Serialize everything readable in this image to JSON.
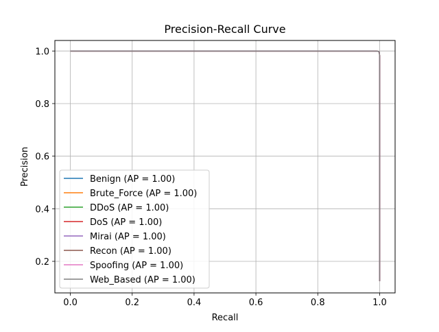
{
  "chart_data": {
    "type": "line",
    "title": "Precision-Recall Curve",
    "xlabel": "Recall",
    "ylabel": "Precision",
    "xlim": [
      -0.05,
      1.05
    ],
    "ylim": [
      0.08,
      1.04
    ],
    "xticks": [
      0.0,
      0.2,
      0.4,
      0.6,
      0.8,
      1.0
    ],
    "xtick_labels": [
      "0.0",
      "0.2",
      "0.4",
      "0.6",
      "0.8",
      "1.0"
    ],
    "yticks": [
      0.2,
      0.4,
      0.6,
      0.8,
      1.0
    ],
    "ytick_labels": [
      "0.2",
      "0.4",
      "0.6",
      "0.8",
      "1.0"
    ],
    "grid": true,
    "legend_position": "lower-left",
    "series": [
      {
        "name": "Benign (AP = 1.00)",
        "color": "#1f77b4",
        "x": [
          0.0,
          0.9,
          0.98,
          0.995,
          0.999,
          1.0,
          1.0
        ],
        "y": [
          1.0,
          1.0,
          1.0,
          0.999,
          0.995,
          0.98,
          0.125
        ]
      },
      {
        "name": "Brute_Force (AP = 1.00)",
        "color": "#ff7f0e",
        "x": [
          0.0,
          0.9,
          0.98,
          0.995,
          0.999,
          1.0,
          1.0
        ],
        "y": [
          1.0,
          1.0,
          1.0,
          0.999,
          0.995,
          0.98,
          0.125
        ]
      },
      {
        "name": "DDoS (AP = 1.00)",
        "color": "#2ca02c",
        "x": [
          0.0,
          0.9,
          0.98,
          0.995,
          0.999,
          1.0,
          1.0
        ],
        "y": [
          1.0,
          1.0,
          1.0,
          0.999,
          0.995,
          0.98,
          0.125
        ]
      },
      {
        "name": "DoS (AP = 1.00)",
        "color": "#d62728",
        "x": [
          0.0,
          0.9,
          0.98,
          0.995,
          0.999,
          1.0,
          1.0
        ],
        "y": [
          1.0,
          1.0,
          1.0,
          0.999,
          0.995,
          0.98,
          0.125
        ]
      },
      {
        "name": "Mirai (AP = 1.00)",
        "color": "#9467bd",
        "x": [
          0.0,
          0.9,
          0.98,
          0.995,
          0.999,
          1.0,
          1.0
        ],
        "y": [
          1.0,
          1.0,
          1.0,
          0.999,
          0.995,
          0.98,
          0.125
        ]
      },
      {
        "name": "Recon (AP = 1.00)",
        "color": "#8c564b",
        "x": [
          0.0,
          0.9,
          0.98,
          0.995,
          0.999,
          1.0,
          1.0
        ],
        "y": [
          1.0,
          1.0,
          1.0,
          0.999,
          0.995,
          0.98,
          0.125
        ]
      },
      {
        "name": "Spoofing (AP = 1.00)",
        "color": "#e377c2",
        "x": [
          0.0,
          0.9,
          0.98,
          0.995,
          0.999,
          1.0,
          1.0
        ],
        "y": [
          1.0,
          1.0,
          1.0,
          0.999,
          0.995,
          0.98,
          0.125
        ]
      },
      {
        "name": "Web_Based (AP = 1.00)",
        "color": "#7f7f7f",
        "x": [
          0.0,
          0.9,
          0.98,
          0.995,
          0.999,
          1.0,
          1.0
        ],
        "y": [
          1.0,
          1.0,
          1.0,
          0.999,
          0.995,
          0.98,
          0.125
        ]
      }
    ]
  }
}
